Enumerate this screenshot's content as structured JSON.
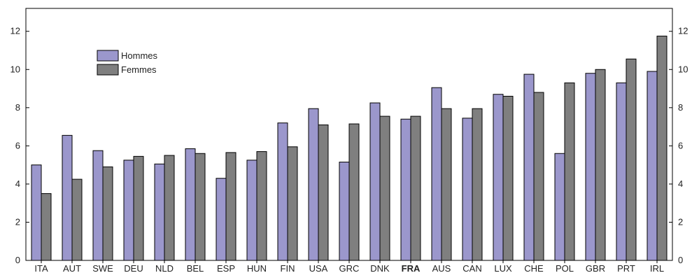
{
  "chart_data": {
    "type": "bar",
    "categories": [
      "ITA",
      "AUT",
      "SWE",
      "DEU",
      "NLD",
      "BEL",
      "ESP",
      "HUN",
      "FIN",
      "USA",
      "GRC",
      "DNK",
      "FRA",
      "AUS",
      "CAN",
      "LUX",
      "CHE",
      "POL",
      "GBR",
      "PRT",
      "IRL"
    ],
    "highlight_category": "FRA",
    "series": [
      {
        "name": "Hommes",
        "color": "#9b97cc",
        "values": [
          5.0,
          6.55,
          5.75,
          5.25,
          5.05,
          5.85,
          4.3,
          5.25,
          7.2,
          7.95,
          5.15,
          8.25,
          7.4,
          9.05,
          7.45,
          8.7,
          9.75,
          5.6,
          9.8,
          9.3,
          9.9
        ]
      },
      {
        "name": "Femmes",
        "color": "#7f7f7f",
        "values": [
          3.5,
          4.25,
          4.9,
          5.45,
          5.5,
          5.6,
          5.65,
          5.7,
          5.95,
          7.1,
          7.15,
          7.55,
          7.55,
          7.95,
          7.95,
          8.6,
          8.8,
          9.3,
          10.0,
          10.55,
          11.75
        ]
      }
    ],
    "ylim": [
      0,
      13.2
    ],
    "yticks": [
      0,
      2,
      4,
      6,
      8,
      10,
      12
    ],
    "grid": false,
    "legend_position": "top-left"
  }
}
